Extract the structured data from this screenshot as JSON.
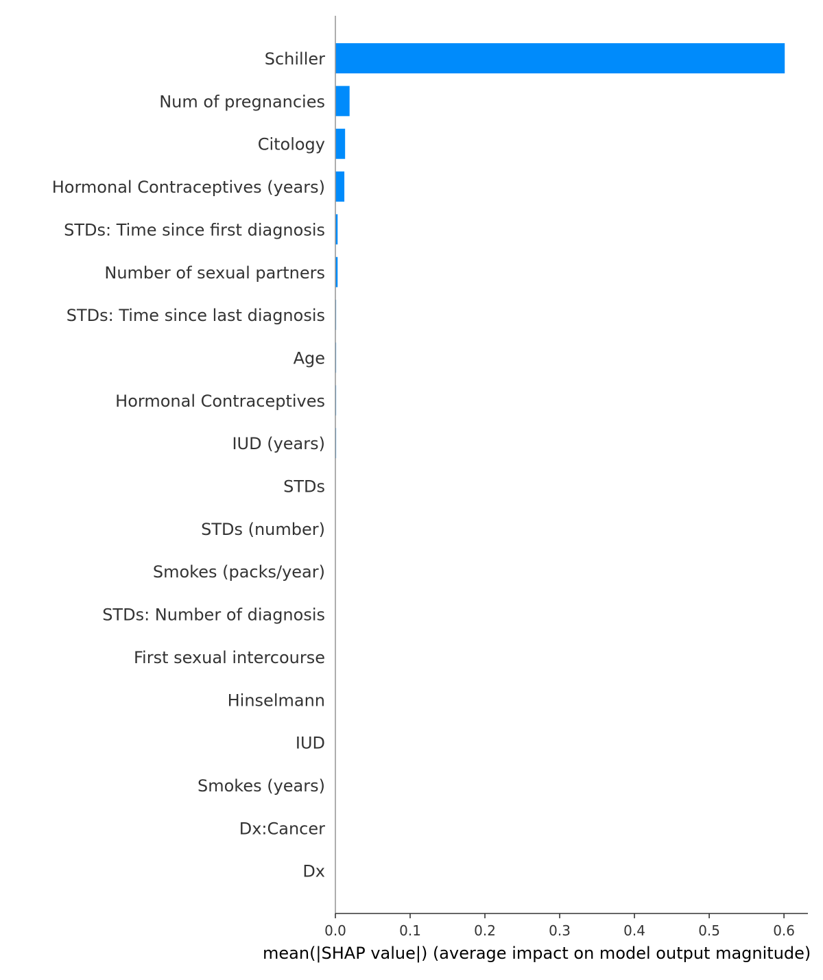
{
  "chart_data": {
    "type": "bar",
    "orientation": "horizontal",
    "categories": [
      "Schiller",
      "Num of pregnancies",
      "Citology",
      "Hormonal Contraceptives (years)",
      "STDs: Time since first diagnosis",
      "Number of sexual partners",
      "STDs: Time since last diagnosis",
      "Age",
      "Hormonal Contraceptives",
      "IUD (years)",
      "STDs",
      "STDs (number)",
      "Smokes (packs/year)",
      "STDs: Number of diagnosis",
      "First sexual intercourse",
      "Hinselmann",
      "IUD",
      "Smokes (years)",
      "Dx:Cancer",
      "Dx"
    ],
    "values": [
      0.601,
      0.019,
      0.013,
      0.012,
      0.003,
      0.003,
      0.001,
      0.001,
      0.001,
      0.001,
      0,
      0,
      0,
      0,
      0,
      0,
      0,
      0,
      0,
      0
    ],
    "xlabel": "mean(|SHAP value|) (average impact on model output magnitude)",
    "xticks": [
      "0.0",
      "0.1",
      "0.2",
      "0.3",
      "0.4",
      "0.5",
      "0.6"
    ],
    "xlim": [
      0,
      0.632
    ],
    "grid": false,
    "legend": "none",
    "bar_color": "#008bfb",
    "axis_color": "#333333"
  }
}
